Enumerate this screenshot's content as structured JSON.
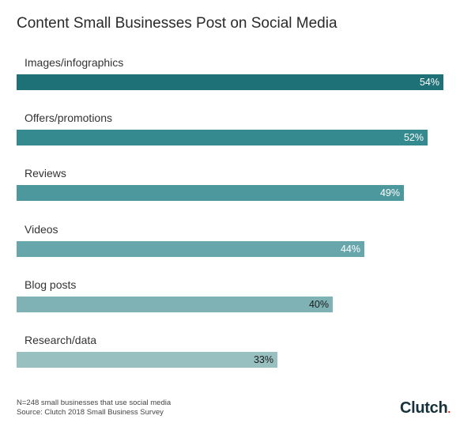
{
  "title": "Content Small Businesses Post on Social Media",
  "chart_data": {
    "type": "bar",
    "orientation": "horizontal",
    "title": "Content Small Businesses Post on Social Media",
    "categories": [
      "Images/infographics",
      "Offers/promotions",
      "Reviews",
      "Videos",
      "Blog posts",
      "Research/data"
    ],
    "values": [
      54,
      52,
      49,
      44,
      40,
      33
    ],
    "value_labels": [
      "54%",
      "52%",
      "49%",
      "44%",
      "40%",
      "33%"
    ],
    "unit": "%",
    "xlim": [
      0,
      54
    ],
    "grid": false,
    "bar_colors": [
      "#1e7177",
      "#348a8f",
      "#4c989c",
      "#67a6ab",
      "#7eb2b5",
      "#98c0c1"
    ],
    "value_text_colors": [
      "#ffffff",
      "#ffffff",
      "#ffffff",
      "#ffffff",
      "#1b1b1b",
      "#1b1b1b"
    ]
  },
  "footnotes": {
    "sample": "N=248 small businesses that use social media",
    "source": "Source: Clutch 2018 Small Business Survey"
  },
  "logo": {
    "text": "Clutch",
    "dot": "."
  }
}
